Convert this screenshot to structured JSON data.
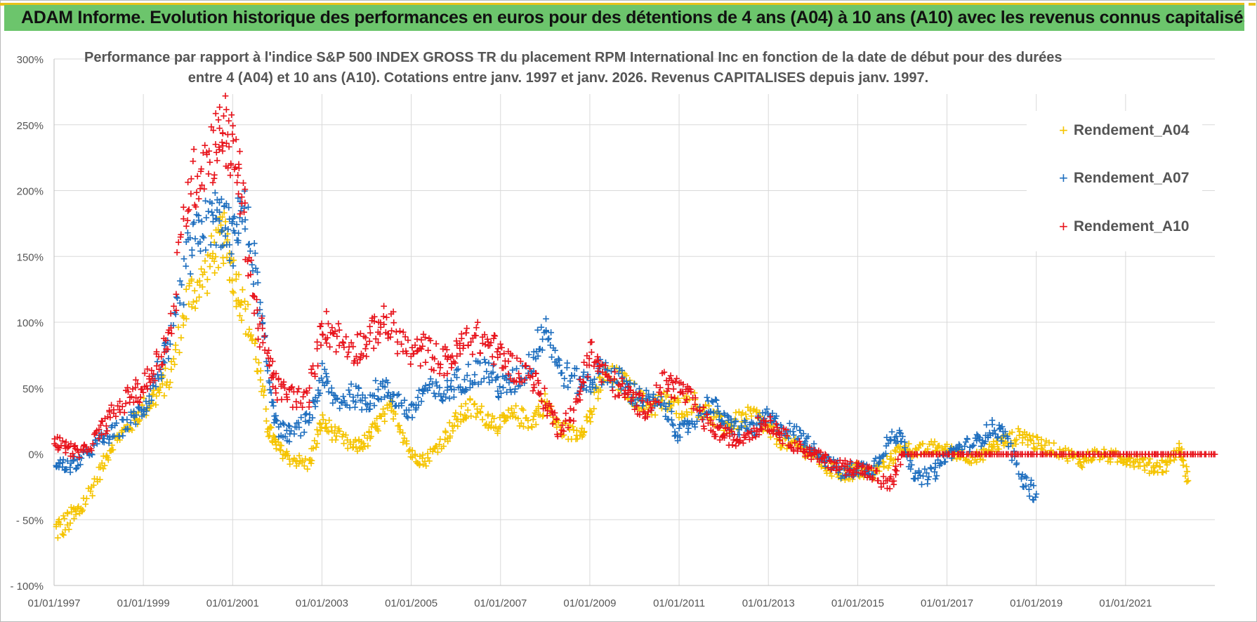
{
  "banner": {
    "title": "ADAM Informe. Evolution historique des performances en euros pour des détentions de 4 ans (A04) à 10 ans (A10) avec les revenus connus capitalisés"
  },
  "colors": {
    "banner_bg": "#6cc56c",
    "banner_accent": "#e8c21a",
    "A04": "#f5c400",
    "A07": "#1f6fbf",
    "A10": "#e8141c",
    "grid": "#d9d9d9"
  },
  "chart_data": {
    "type": "scatter",
    "title_line1": "Performance par rapport à l'indice S&P 500 INDEX GROSS TR  du placement RPM International Inc en fonction de la date de début pour des durées",
    "title_line2": "entre 4 (A04) et 10 ans (A10).  Cotations entre janv. 1997 et janv. 2026. Revenus CAPITALISES  depuis janv. 1997.",
    "xlabel": "",
    "ylabel": "",
    "x_range": [
      1997.0,
      2023.0
    ],
    "ylim": [
      -100,
      300
    ],
    "y_ticks": [
      300,
      250,
      200,
      150,
      100,
      50,
      0,
      -50,
      -100
    ],
    "y_tick_labels": [
      "300%",
      "250%",
      "200%",
      "150%",
      "100%",
      "50%",
      "0%",
      "- 50%",
      "- 100%"
    ],
    "x_ticks": [
      1997,
      1999,
      2001,
      2003,
      2005,
      2007,
      2009,
      2011,
      2013,
      2015,
      2017,
      2019,
      2021
    ],
    "x_tick_labels": [
      "01/01/1997",
      "01/01/1999",
      "01/01/2001",
      "01/01/2003",
      "01/01/2005",
      "01/01/2007",
      "01/01/2009",
      "01/01/2011",
      "01/01/2013",
      "01/01/2015",
      "01/01/2017",
      "01/01/2019",
      "01/01/2021"
    ],
    "legend_position": "top-right",
    "series": [
      {
        "name": "Rendement_A04",
        "x": [
          1997.0,
          1997.3,
          1997.6,
          1998.0,
          1998.3,
          1998.7,
          1999.0,
          1999.3,
          1999.6,
          2000.0,
          2000.3,
          2000.6,
          2000.8,
          2001.0,
          2001.2,
          2001.5,
          2001.8,
          2002.0,
          2002.3,
          2002.7,
          2003.0,
          2003.3,
          2003.7,
          2004.0,
          2004.3,
          2004.6,
          2005.0,
          2005.3,
          2005.7,
          2006.0,
          2006.3,
          2006.7,
          2007.0,
          2007.3,
          2007.7,
          2008.0,
          2008.3,
          2008.7,
          2009.0,
          2009.3,
          2009.7,
          2010.0,
          2010.3,
          2010.7,
          2011.0,
          2011.3,
          2011.7,
          2012.0,
          2012.3,
          2012.7,
          2013.0,
          2013.3,
          2013.7,
          2014.0,
          2014.3,
          2014.7,
          2015.0,
          2015.3,
          2015.7,
          2016.0,
          2016.3,
          2016.7,
          2017.0,
          2017.3,
          2017.7,
          2018.0,
          2018.3,
          2018.7,
          2019.0,
          2019.3,
          2019.7,
          2020.0,
          2020.3,
          2020.7,
          2021.0,
          2021.3,
          2021.6,
          2021.9,
          2022.2,
          2022.4
        ],
        "values": [
          -58,
          -52,
          -42,
          -15,
          8,
          22,
          35,
          45,
          60,
          120,
          130,
          155,
          165,
          140,
          118,
          80,
          20,
          5,
          -3,
          -8,
          25,
          15,
          5,
          10,
          25,
          35,
          0,
          -5,
          10,
          25,
          35,
          28,
          22,
          30,
          25,
          40,
          20,
          15,
          28,
          60,
          55,
          45,
          35,
          40,
          35,
          40,
          30,
          20,
          25,
          30,
          18,
          10,
          5,
          0,
          -10,
          -15,
          -12,
          -15,
          -5,
          5,
          2,
          5,
          3,
          0,
          -3,
          5,
          10,
          15,
          8,
          5,
          0,
          -5,
          0,
          -2,
          -3,
          -5,
          -10,
          -8,
          5,
          -20
        ]
      },
      {
        "name": "Rendement_A07",
        "x": [
          1997.0,
          1997.3,
          1997.6,
          1998.0,
          1998.3,
          1998.7,
          1999.0,
          1999.3,
          1999.6,
          2000.0,
          2000.3,
          2000.6,
          2000.8,
          2001.0,
          2001.2,
          2001.5,
          2001.8,
          2002.0,
          2002.3,
          2002.7,
          2003.0,
          2003.3,
          2003.7,
          2004.0,
          2004.3,
          2004.6,
          2005.0,
          2005.3,
          2005.7,
          2006.0,
          2006.3,
          2006.7,
          2007.0,
          2007.3,
          2007.7,
          2008.0,
          2008.3,
          2008.7,
          2009.0,
          2009.3,
          2009.7,
          2010.0,
          2010.3,
          2010.7,
          2011.0,
          2011.3,
          2011.7,
          2012.0,
          2012.3,
          2012.7,
          2013.0,
          2013.3,
          2013.7,
          2014.0,
          2014.3,
          2014.7,
          2015.0,
          2015.3,
          2015.7,
          2016.0,
          2016.3,
          2016.7,
          2017.0,
          2017.3,
          2017.7,
          2018.0,
          2018.3,
          2018.7,
          2019.0
        ],
        "values": [
          -5,
          -10,
          -5,
          10,
          15,
          25,
          35,
          60,
          80,
          150,
          170,
          180,
          175,
          160,
          190,
          140,
          60,
          20,
          15,
          25,
          60,
          40,
          45,
          40,
          50,
          45,
          30,
          50,
          45,
          55,
          60,
          65,
          50,
          55,
          70,
          100,
          65,
          55,
          55,
          65,
          55,
          45,
          40,
          35,
          15,
          25,
          40,
          25,
          20,
          20,
          28,
          20,
          15,
          5,
          -5,
          -15,
          -10,
          -12,
          10,
          15,
          -20,
          -15,
          0,
          5,
          10,
          20,
          15,
          -20,
          -30
        ]
      },
      {
        "name": "Rendement_A10",
        "x": [
          1997.0,
          1997.3,
          1997.6,
          1998.0,
          1998.3,
          1998.7,
          1999.0,
          1999.3,
          1999.6,
          2000.0,
          2000.3,
          2000.6,
          2000.8,
          2001.0,
          2001.2,
          2001.5,
          2001.8,
          2002.0,
          2002.3,
          2002.7,
          2003.0,
          2003.3,
          2003.7,
          2004.0,
          2004.3,
          2004.6,
          2005.0,
          2005.3,
          2005.7,
          2006.0,
          2006.3,
          2006.7,
          2007.0,
          2007.3,
          2007.7,
          2008.0,
          2008.3,
          2008.7,
          2009.0,
          2009.3,
          2009.7,
          2010.0,
          2010.3,
          2010.7,
          2011.0,
          2011.3,
          2011.7,
          2012.0,
          2012.3,
          2012.7,
          2013.0,
          2013.3,
          2013.7,
          2014.0,
          2014.3,
          2014.7,
          2015.0,
          2015.3,
          2015.7,
          2016.0,
          2016.5,
          2017.0,
          2017.5,
          2018.0,
          2018.5,
          2019.0,
          2019.5,
          2020.0,
          2020.5,
          2021.0,
          2021.5,
          2022.0,
          2022.5,
          2023.0
        ],
        "values": [
          10,
          5,
          0,
          15,
          30,
          45,
          50,
          70,
          90,
          200,
          220,
          235,
          250,
          230,
          200,
          110,
          70,
          50,
          45,
          40,
          100,
          90,
          80,
          85,
          100,
          95,
          75,
          80,
          70,
          75,
          90,
          85,
          75,
          65,
          60,
          40,
          20,
          35,
          80,
          60,
          50,
          40,
          35,
          55,
          50,
          40,
          20,
          15,
          10,
          20,
          25,
          15,
          5,
          0,
          -5,
          -10,
          -10,
          -15,
          -25,
          0,
          0,
          0,
          0,
          0,
          0,
          0,
          0,
          0,
          0,
          0,
          0,
          0,
          0,
          0
        ]
      }
    ]
  }
}
